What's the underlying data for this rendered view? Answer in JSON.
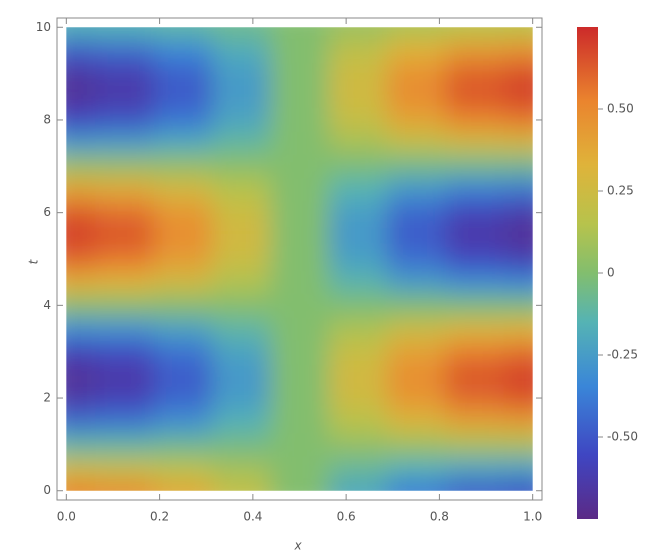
{
  "chart_data": {
    "type": "heatmap",
    "xlabel": "x",
    "ylabel": "t",
    "x": [
      0,
      0.125,
      0.25,
      0.375,
      0.5,
      0.625,
      0.75,
      0.875,
      1
    ],
    "y": [
      0,
      0.5,
      1,
      1.5,
      2,
      2.5,
      3,
      3.5,
      4,
      4.5,
      5,
      5.5,
      6,
      6.5,
      7,
      7.5,
      8,
      8.5,
      9,
      9.5,
      10
    ],
    "z": [
      [
        0.52,
        0.48,
        0.37,
        0.2,
        0,
        -0.2,
        -0.37,
        -0.48,
        -0.52
      ],
      [
        0.23,
        0.21,
        0.16,
        0.09,
        0,
        -0.09,
        -0.16,
        -0.21,
        -0.23
      ],
      [
        -0.12,
        -0.11,
        -0.08,
        -0.05,
        0,
        0.05,
        0.08,
        0.11,
        0.12
      ],
      [
        -0.43,
        -0.4,
        -0.3,
        -0.16,
        0,
        0.16,
        0.3,
        0.4,
        0.43
      ],
      [
        -0.64,
        -0.59,
        -0.45,
        -0.25,
        0,
        0.25,
        0.45,
        0.59,
        0.64
      ],
      [
        -0.7,
        -0.65,
        -0.49,
        -0.27,
        0,
        0.27,
        0.49,
        0.65,
        0.7
      ],
      [
        -0.58,
        -0.54,
        -0.41,
        -0.22,
        0,
        0.22,
        0.41,
        0.54,
        0.58
      ],
      [
        -0.32,
        -0.3,
        -0.23,
        -0.12,
        0,
        0.12,
        0.23,
        0.3,
        0.32
      ],
      [
        0.02,
        0.02,
        0.01,
        0.01,
        0,
        -0.01,
        -0.01,
        -0.02,
        -0.02
      ],
      [
        0.35,
        0.32,
        0.25,
        0.13,
        0,
        -0.13,
        -0.25,
        -0.32,
        -0.35
      ],
      [
        0.6,
        0.55,
        0.42,
        0.23,
        0,
        -0.23,
        -0.42,
        -0.55,
        -0.6
      ],
      [
        0.7,
        0.65,
        0.49,
        0.27,
        0,
        -0.27,
        -0.49,
        -0.65,
        -0.7
      ],
      [
        0.63,
        0.58,
        0.45,
        0.24,
        0,
        -0.24,
        -0.45,
        -0.58,
        -0.63
      ],
      [
        0.4,
        0.37,
        0.28,
        0.15,
        0,
        -0.15,
        -0.28,
        -0.37,
        -0.4
      ],
      [
        0.08,
        0.07,
        0.06,
        0.03,
        0,
        -0.03,
        -0.06,
        -0.07,
        -0.08
      ],
      [
        -0.26,
        -0.24,
        -0.18,
        -0.1,
        0,
        0.1,
        0.18,
        0.24,
        0.26
      ],
      [
        -0.55,
        -0.51,
        -0.39,
        -0.21,
        0,
        0.21,
        0.39,
        0.51,
        0.55
      ],
      [
        -0.69,
        -0.64,
        -0.49,
        -0.26,
        0,
        0.26,
        0.49,
        0.64,
        0.69
      ],
      [
        -0.66,
        -0.61,
        -0.47,
        -0.25,
        0,
        0.25,
        0.47,
        0.61,
        0.66
      ],
      [
        -0.48,
        -0.44,
        -0.34,
        -0.18,
        0,
        0.18,
        0.34,
        0.44,
        0.48
      ],
      [
        -0.17,
        -0.16,
        -0.12,
        -0.07,
        0,
        0.07,
        0.12,
        0.16,
        0.17
      ]
    ],
    "xlim": [
      -0.02,
      1.02
    ],
    "ylim": [
      -0.2,
      10.2
    ],
    "zlim": [
      -0.75,
      0.75
    ],
    "xticks": [
      {
        "value": 0,
        "label": "0.0"
      },
      0.2,
      0.4,
      0.6,
      0.8,
      {
        "value": 1,
        "label": "1.0"
      }
    ],
    "yticks": [
      0,
      2,
      4,
      6,
      8,
      10
    ],
    "zticks": [
      {
        "value": 0.5,
        "label": "0.50"
      },
      0.25,
      0,
      -0.25,
      {
        "value": -0.5,
        "label": "-0.50"
      }
    ]
  }
}
